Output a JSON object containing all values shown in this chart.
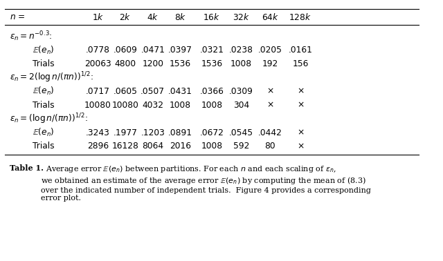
{
  "header_col": "$n$ =",
  "header_vals": [
    "$1k$",
    "$2k$",
    "$4k$",
    "$8k$",
    "$16k$",
    "$32k$",
    "$64k$",
    "$128k$"
  ],
  "section1_label": "$\\varepsilon_n = n^{-0.3}$:",
  "section1_row1_label": "$\\mathbb{E}(e_n)$",
  "section1_row1_vals": [
    ".0778",
    ".0609",
    ".0471",
    ".0397",
    ".0321",
    ".0238",
    ".0205",
    ".0161"
  ],
  "section1_row2_label": "Trials",
  "section1_row2_vals": [
    "20063",
    "4800",
    "1200",
    "1536",
    "1536",
    "1008",
    "192",
    "156"
  ],
  "section2_label": "$\\varepsilon_n = 2(\\log n/(\\pi n))^{1/2}$:",
  "section2_row1_label": "$\\mathbb{E}(e_n)$",
  "section2_row1_vals": [
    ".0717",
    ".0605",
    ".0507",
    ".0431",
    ".0366",
    ".0309",
    "$\\times$",
    "$\\times$"
  ],
  "section2_row2_label": "Trials",
  "section2_row2_vals": [
    "10080",
    "10080",
    "4032",
    "1008",
    "1008",
    "304",
    "$\\times$",
    "$\\times$"
  ],
  "section3_label": "$\\varepsilon_n = (\\log n/(\\pi n))^{1/2}$:",
  "section3_row1_label": "$\\mathbb{E}(e_n)$",
  "section3_row1_vals": [
    ".3243",
    ".1977",
    ".1203",
    ".0891",
    ".0672",
    ".0545",
    ".0442",
    "$\\times$"
  ],
  "section3_row2_label": "Trials",
  "section3_row2_vals": [
    "2896",
    "16128",
    "8064",
    "2016",
    "1008",
    "592",
    "80",
    "$\\times$"
  ],
  "caption_bold": "Table 1.",
  "caption_normal": "  Average error $\\mathbb{E}(e_n)$ between partitions. For each $n$ and each scaling of $\\varepsilon_n$,\nwe obtained an estimate of the average error $\\mathbb{E}(e_n)$ by computing the mean of (8.3)\nover the indicated number of independent trials.  Figure 4 provides a corresponding\nerror plot.",
  "bg_color": "#ffffff",
  "text_color": "#000000",
  "line_color": "#000000"
}
